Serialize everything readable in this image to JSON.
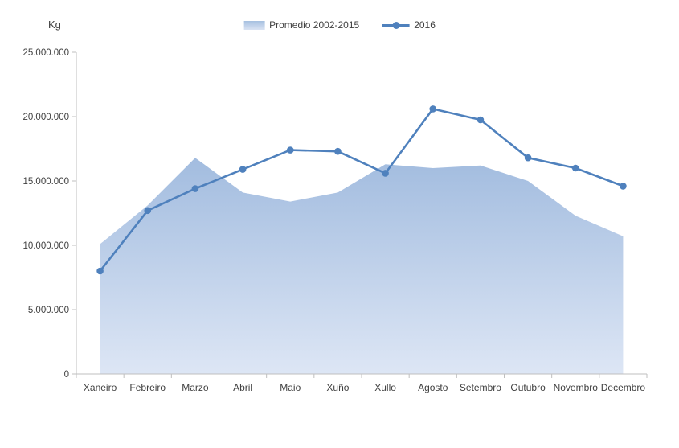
{
  "chart_data": {
    "type": "line",
    "title": "",
    "xlabel": "",
    "ylabel": "Kg",
    "categories": [
      "Xaneiro",
      "Febreiro",
      "Marzo",
      "Abril",
      "Maio",
      "Xuño",
      "Xullo",
      "Agosto",
      "Setembro",
      "Outubro",
      "Novembro",
      "Decembro"
    ],
    "series": [
      {
        "name": "Promedio 2002-2015",
        "type": "area",
        "color": "#b3c7e3",
        "gradient_top": "#a2bcdf",
        "gradient_bottom": "#dde6f5",
        "values": [
          10100000,
          13100000,
          16800000,
          14100000,
          13400000,
          14100000,
          16300000,
          16000000,
          16200000,
          15000000,
          12300000,
          10700000
        ]
      },
      {
        "name": "2016",
        "type": "line",
        "color": "#4f81bd",
        "values": [
          8000000,
          12700000,
          14400000,
          15900000,
          17400000,
          17300000,
          15600000,
          20600000,
          19750000,
          16800000,
          16000000,
          14600000
        ]
      }
    ],
    "ylim": [
      0,
      25000000
    ],
    "ytick_step": 5000000,
    "ytick_labels": [
      "0",
      "5.000.000",
      "10.000.000",
      "15.000.000",
      "20.000.000",
      "25.000.000"
    ],
    "grid": false,
    "legend_position": "top",
    "axis_color": "#bfbfbf",
    "text_color": "#404040"
  }
}
